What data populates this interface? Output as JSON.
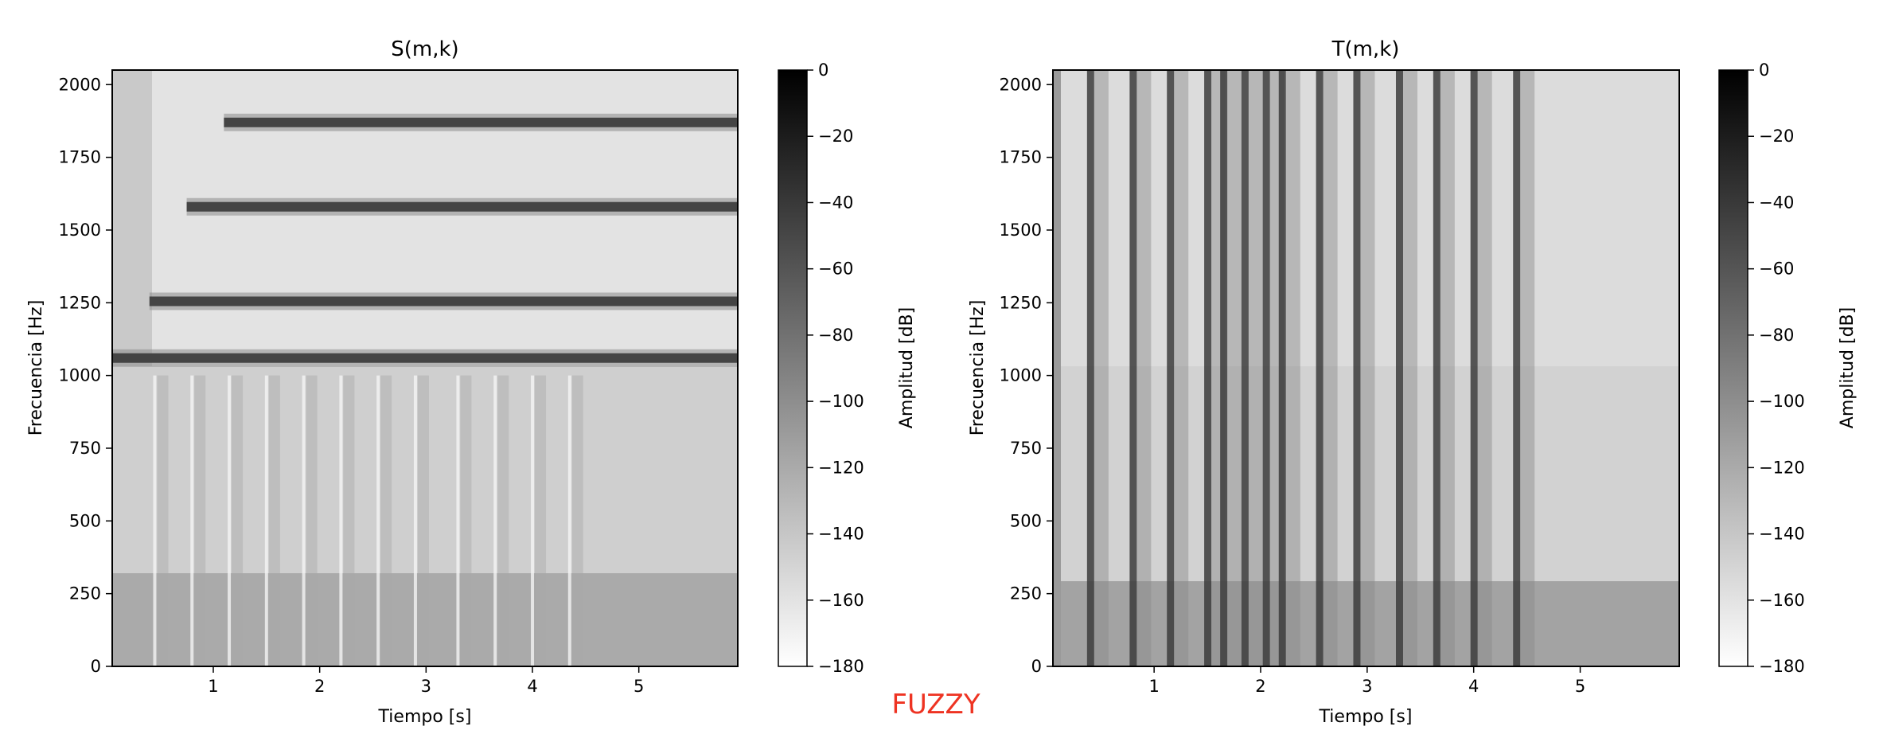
{
  "figure_label": "FUZZY",
  "colors": {
    "label": "#ee3322",
    "background": "#ffffff",
    "colormap": "gray_r"
  },
  "chart_data": [
    {
      "type": "heatmap",
      "title": "S(m,k)",
      "xlabel": "Tiempo [s]",
      "ylabel": "Frecuencia [Hz]",
      "xlim": [
        0.05,
        5.93
      ],
      "ylim": [
        0,
        2050
      ],
      "xticks": [
        1,
        2,
        3,
        4,
        5
      ],
      "yticks": [
        0,
        250,
        500,
        750,
        1000,
        1250,
        1500,
        1750,
        2000
      ],
      "colorbar": {
        "label": "Amplitud [dB]",
        "range": [
          -180,
          0
        ],
        "ticks": [
          0,
          -20,
          -40,
          -60,
          -80,
          -100,
          -120,
          -140,
          -160,
          -180
        ]
      },
      "grid": false,
      "description_values": {
        "harmonic_bands_hz": [
          1060,
          1255,
          1580,
          1870
        ],
        "band_onsets_s": [
          0.05,
          0.4,
          0.75,
          1.1
        ],
        "transient_times_s": [
          0.45,
          0.8,
          1.15,
          1.5,
          1.85,
          2.2,
          2.55,
          2.9,
          3.3,
          3.65,
          4.0,
          4.35
        ]
      }
    },
    {
      "type": "heatmap",
      "title": "T(m,k)",
      "xlabel": "Tiempo [s]",
      "ylabel": "Frecuencia [Hz]",
      "xlim": [
        0.05,
        5.93
      ],
      "ylim": [
        0,
        2050
      ],
      "xticks": [
        1,
        2,
        3,
        4,
        5
      ],
      "yticks": [
        0,
        250,
        500,
        750,
        1000,
        1250,
        1500,
        1750,
        2000
      ],
      "colorbar": {
        "label": "Amplitud [dB]",
        "range": [
          -180,
          0
        ],
        "ticks": [
          0,
          -20,
          -40,
          -60,
          -80,
          -100,
          -120,
          -140,
          -160,
          -180
        ]
      },
      "grid": false,
      "description_values": {
        "transient_times_s": [
          0.4,
          0.8,
          1.15,
          1.5,
          1.65,
          1.85,
          2.05,
          2.2,
          2.55,
          2.9,
          3.3,
          3.65,
          4.0,
          4.4
        ]
      }
    }
  ]
}
